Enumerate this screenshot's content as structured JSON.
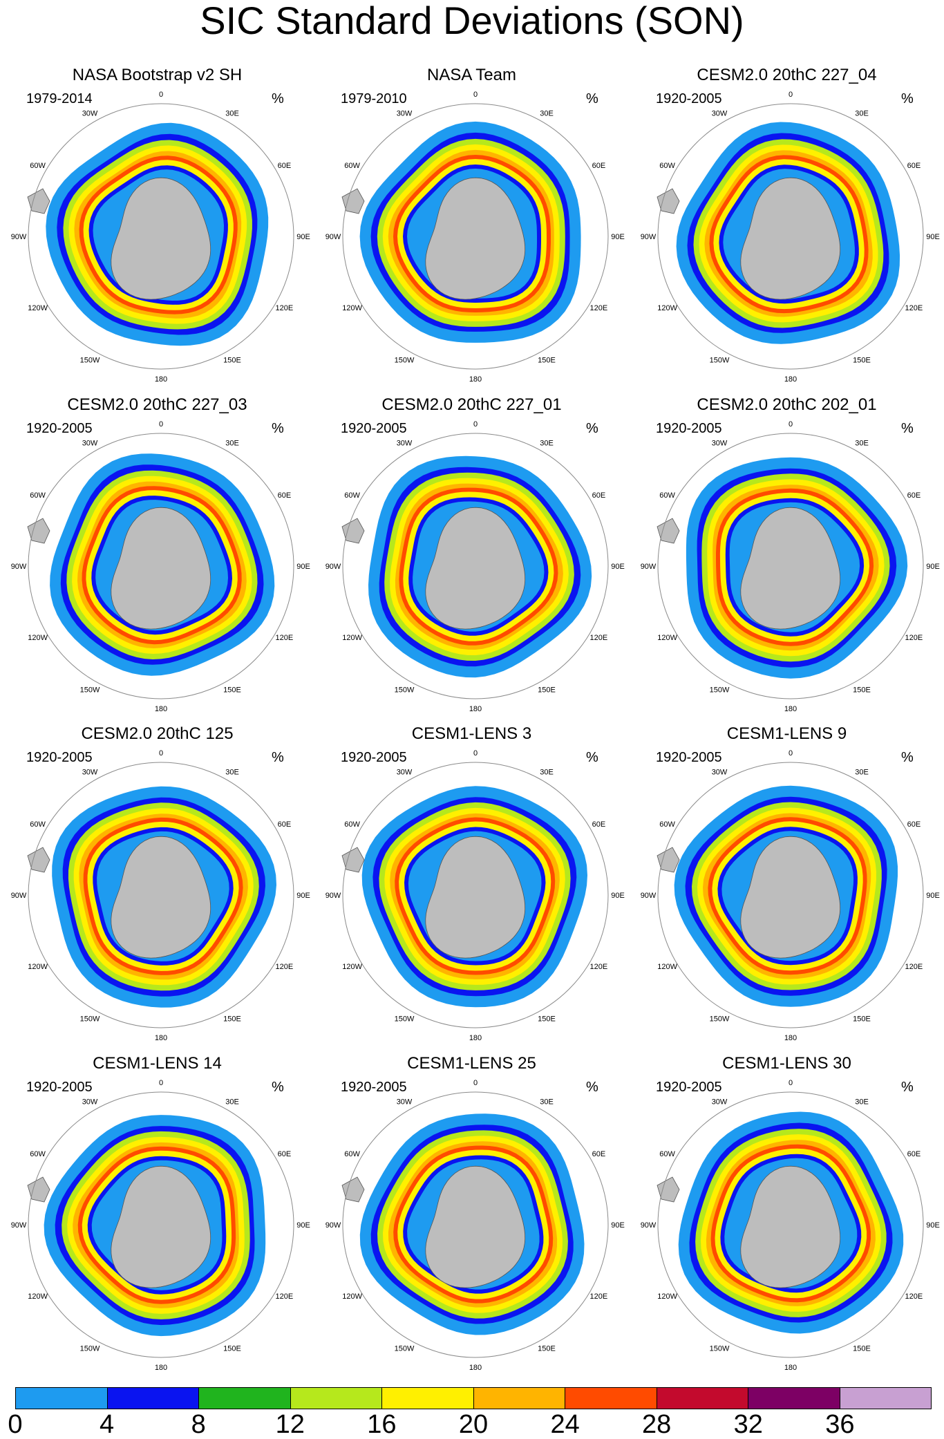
{
  "figure": {
    "title": "SIC Standard Deviations (SON)"
  },
  "map_labels": {
    "longitudes": [
      "0",
      "30E",
      "60E",
      "90E",
      "120E",
      "150E",
      "180",
      "150W",
      "120W",
      "90W",
      "60W",
      "30W"
    ]
  },
  "panels": [
    {
      "title": "NASA Bootstrap v2 SH",
      "period": "1979-2014",
      "unit": "%"
    },
    {
      "title": "NASA Team",
      "period": "1979-2010",
      "unit": "%"
    },
    {
      "title": "CESM2.0 20thC 227_04",
      "period": "1920-2005",
      "unit": "%"
    },
    {
      "title": "CESM2.0 20thC 227_03",
      "period": "1920-2005",
      "unit": "%"
    },
    {
      "title": "CESM2.0 20thC 227_01",
      "period": "1920-2005",
      "unit": "%"
    },
    {
      "title": "CESM2.0 20thC 202_01",
      "period": "1920-2005",
      "unit": "%"
    },
    {
      "title": "CESM2.0 20thC 125",
      "period": "1920-2005",
      "unit": "%"
    },
    {
      "title": "CESM1-LENS 3",
      "period": "1920-2005",
      "unit": "%"
    },
    {
      "title": "CESM1-LENS 9",
      "period": "1920-2005",
      "unit": "%"
    },
    {
      "title": "CESM1-LENS 14",
      "period": "1920-2005",
      "unit": "%"
    },
    {
      "title": "CESM1-LENS 25",
      "period": "1920-2005",
      "unit": "%"
    },
    {
      "title": "CESM1-LENS 30",
      "period": "1920-2005",
      "unit": "%"
    }
  ],
  "colorbar": {
    "labels": [
      "0",
      "4",
      "8",
      "12",
      "16",
      "20",
      "24",
      "28",
      "32",
      "36"
    ],
    "colors": [
      "#1e9bf0",
      "#0a14f0",
      "#20b41e",
      "#b6e81c",
      "#fff000",
      "#ffb400",
      "#ff4b00",
      "#c30a2d",
      "#7d0064",
      "#c8a0d2"
    ]
  },
  "style_colors": {
    "land": "#bdbdbd",
    "grid": "#8a8a8a"
  }
}
